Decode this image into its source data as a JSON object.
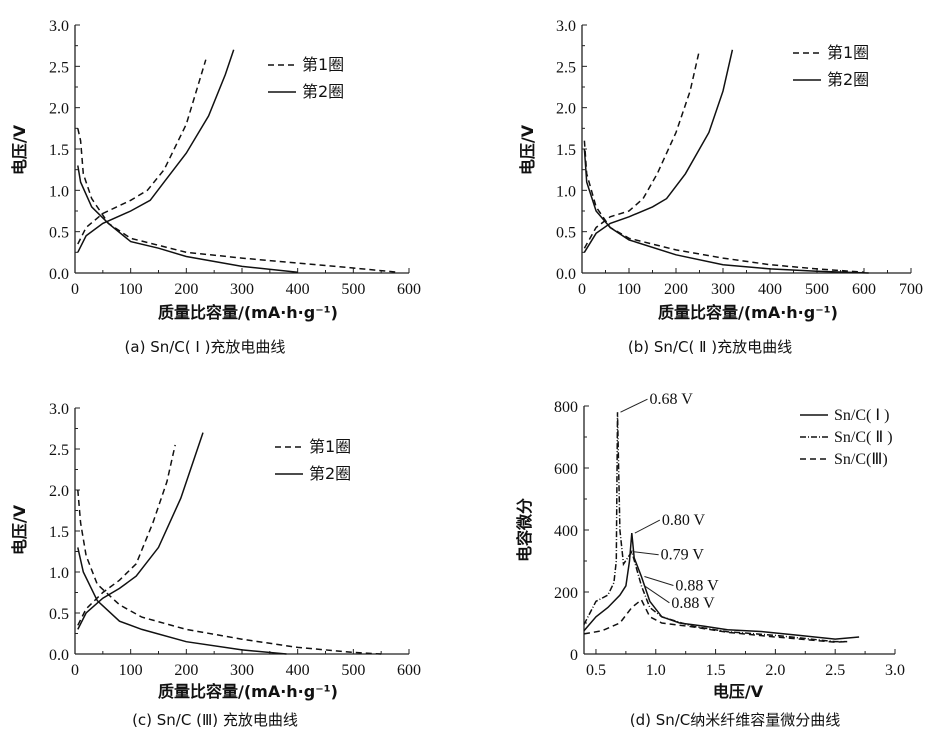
{
  "chart_data": [
    {
      "id": "a",
      "type": "line",
      "caption": "(a)  Sn/C( Ⅰ )充放电曲线",
      "xlabel": "质量比容量/(mA·h·g⁻¹)",
      "ylabel": "电压/V",
      "xlim": [
        0,
        600
      ],
      "ylim": [
        0,
        3.0
      ],
      "xticks": [
        0,
        100,
        200,
        300,
        400,
        500,
        600
      ],
      "yticks": [
        0.0,
        0.5,
        1.0,
        1.5,
        2.0,
        2.5,
        3.0
      ],
      "legend_position": "top-right",
      "series": [
        {
          "name": "第1圈",
          "style": "dashed",
          "segments": [
            [
              [
                5,
                0.35
              ],
              [
                20,
                0.55
              ],
              [
                50,
                0.72
              ],
              [
                100,
                0.88
              ],
              [
                130,
                1.0
              ],
              [
                160,
                1.25
              ],
              [
                200,
                1.8
              ],
              [
                235,
                2.58
              ]
            ],
            [
              [
                5,
                1.75
              ],
              [
                10,
                1.6
              ],
              [
                15,
                1.2
              ],
              [
                30,
                0.9
              ],
              [
                60,
                0.6
              ],
              [
                100,
                0.42
              ],
              [
                200,
                0.25
              ],
              [
                300,
                0.18
              ],
              [
                400,
                0.12
              ],
              [
                500,
                0.06
              ],
              [
                580,
                0.01
              ]
            ]
          ]
        },
        {
          "name": "第2圈",
          "style": "solid",
          "segments": [
            [
              [
                5,
                0.25
              ],
              [
                20,
                0.45
              ],
              [
                50,
                0.6
              ],
              [
                100,
                0.75
              ],
              [
                135,
                0.88
              ],
              [
                160,
                1.1
              ],
              [
                200,
                1.45
              ],
              [
                240,
                1.9
              ],
              [
                270,
                2.4
              ],
              [
                285,
                2.7
              ]
            ],
            [
              [
                5,
                1.3
              ],
              [
                10,
                1.1
              ],
              [
                30,
                0.8
              ],
              [
                60,
                0.6
              ],
              [
                100,
                0.38
              ],
              [
                150,
                0.3
              ],
              [
                200,
                0.2
              ],
              [
                300,
                0.08
              ],
              [
                400,
                0.01
              ]
            ]
          ]
        }
      ]
    },
    {
      "id": "b",
      "type": "line",
      "caption": "(b)  Sn/C( Ⅱ )充放电曲线",
      "xlabel": "质量比容量/(mA·h·g⁻¹)",
      "ylabel": "电压/V",
      "xlim": [
        0,
        700
      ],
      "ylim": [
        0,
        3.0
      ],
      "xticks": [
        0,
        100,
        200,
        300,
        400,
        500,
        600,
        700
      ],
      "yticks": [
        0.0,
        0.5,
        1.0,
        1.5,
        2.0,
        2.5,
        3.0
      ],
      "legend_position": "top-right",
      "series": [
        {
          "name": "第1圈",
          "style": "dashed",
          "segments": [
            [
              [
                5,
                0.3
              ],
              [
                30,
                0.55
              ],
              [
                60,
                0.68
              ],
              [
                100,
                0.75
              ],
              [
                130,
                0.9
              ],
              [
                160,
                1.2
              ],
              [
                200,
                1.7
              ],
              [
                230,
                2.2
              ],
              [
                250,
                2.7
              ]
            ],
            [
              [
                5,
                1.6
              ],
              [
                10,
                1.2
              ],
              [
                30,
                0.8
              ],
              [
                60,
                0.55
              ],
              [
                100,
                0.42
              ],
              [
                200,
                0.28
              ],
              [
                300,
                0.18
              ],
              [
                400,
                0.1
              ],
              [
                500,
                0.05
              ],
              [
                600,
                0.01
              ]
            ]
          ]
        },
        {
          "name": "第2圈",
          "style": "solid",
          "segments": [
            [
              [
                5,
                0.25
              ],
              [
                30,
                0.48
              ],
              [
                60,
                0.6
              ],
              [
                100,
                0.68
              ],
              [
                150,
                0.8
              ],
              [
                180,
                0.9
              ],
              [
                220,
                1.2
              ],
              [
                270,
                1.7
              ],
              [
                300,
                2.2
              ],
              [
                320,
                2.7
              ]
            ],
            [
              [
                5,
                1.5
              ],
              [
                10,
                1.1
              ],
              [
                30,
                0.75
              ],
              [
                60,
                0.55
              ],
              [
                100,
                0.4
              ],
              [
                200,
                0.22
              ],
              [
                300,
                0.1
              ],
              [
                400,
                0.05
              ],
              [
                500,
                0.02
              ],
              [
                610,
                0.0
              ]
            ]
          ]
        }
      ]
    },
    {
      "id": "c",
      "type": "line",
      "caption": "(c)  Sn/C (Ⅲ) 充放电曲线",
      "xlabel": "质量比容量/(mA·h·g⁻¹)",
      "ylabel": "电压/V",
      "xlim": [
        0,
        600
      ],
      "ylim": [
        0,
        3.0
      ],
      "xticks": [
        0,
        100,
        200,
        300,
        400,
        500,
        600
      ],
      "yticks": [
        0.0,
        0.5,
        1.0,
        1.5,
        2.0,
        2.5,
        3.0
      ],
      "legend_position": "top-right",
      "series": [
        {
          "name": "第1圈",
          "style": "dashed",
          "segments": [
            [
              [
                5,
                0.35
              ],
              [
                20,
                0.55
              ],
              [
                50,
                0.75
              ],
              [
                80,
                0.9
              ],
              [
                110,
                1.1
              ],
              [
                140,
                1.6
              ],
              [
                165,
                2.1
              ],
              [
                180,
                2.55
              ]
            ],
            [
              [
                5,
                2.0
              ],
              [
                10,
                1.6
              ],
              [
                20,
                1.2
              ],
              [
                40,
                0.85
              ],
              [
                80,
                0.6
              ],
              [
                120,
                0.45
              ],
              [
                200,
                0.3
              ],
              [
                300,
                0.18
              ],
              [
                400,
                0.08
              ],
              [
                500,
                0.02
              ],
              [
                550,
                0.0
              ]
            ]
          ]
        },
        {
          "name": "第2圈",
          "style": "solid",
          "segments": [
            [
              [
                5,
                0.3
              ],
              [
                20,
                0.5
              ],
              [
                50,
                0.68
              ],
              [
                80,
                0.8
              ],
              [
                110,
                0.95
              ],
              [
                150,
                1.3
              ],
              [
                190,
                1.9
              ],
              [
                230,
                2.7
              ]
            ],
            [
              [
                5,
                1.3
              ],
              [
                15,
                1.0
              ],
              [
                40,
                0.65
              ],
              [
                80,
                0.4
              ],
              [
                120,
                0.3
              ],
              [
                200,
                0.15
              ],
              [
                300,
                0.05
              ],
              [
                380,
                0.0
              ]
            ]
          ]
        }
      ]
    },
    {
      "id": "d",
      "type": "line",
      "caption": "(d) Sn/C纳米纤维容量微分曲线",
      "xlabel": "电压/V",
      "ylabel": "电容微分",
      "xlim": [
        0.4,
        3.0
      ],
      "ylim": [
        0,
        800
      ],
      "xticks": [
        0.5,
        1.0,
        1.5,
        2.0,
        2.5,
        3.0
      ],
      "yticks": [
        0,
        200,
        400,
        600,
        800
      ],
      "legend_position": "top-right",
      "series": [
        {
          "name": "Sn/C( Ⅰ )",
          "style": "solid",
          "segments": [
            [
              [
                0.4,
                75
              ],
              [
                0.5,
                120
              ],
              [
                0.6,
                150
              ],
              [
                0.7,
                190
              ],
              [
                0.75,
                220
              ],
              [
                0.78,
                300
              ],
              [
                0.8,
                390
              ],
              [
                0.82,
                310
              ],
              [
                0.88,
                250
              ],
              [
                0.95,
                170
              ],
              [
                1.05,
                120
              ],
              [
                1.2,
                100
              ],
              [
                1.4,
                90
              ],
              [
                1.6,
                78
              ],
              [
                1.9,
                72
              ],
              [
                2.2,
                60
              ],
              [
                2.5,
                48
              ],
              [
                2.7,
                55
              ]
            ]
          ]
        },
        {
          "name": "Sn/C( Ⅱ )",
          "style": "dashdot",
          "segments": [
            [
              [
                0.4,
                95
              ],
              [
                0.5,
                170
              ],
              [
                0.6,
                190
              ],
              [
                0.65,
                230
              ],
              [
                0.67,
                300
              ],
              [
                0.68,
                780
              ],
              [
                0.7,
                400
              ],
              [
                0.73,
                290
              ],
              [
                0.8,
                330
              ],
              [
                0.88,
                220
              ],
              [
                0.95,
                150
              ],
              [
                1.05,
                120
              ],
              [
                1.3,
                90
              ],
              [
                1.6,
                72
              ],
              [
                2.0,
                60
              ],
              [
                2.5,
                40
              ],
              [
                2.6,
                40
              ]
            ]
          ]
        },
        {
          "name": "Sn/C(Ⅲ)",
          "style": "dashed",
          "segments": [
            [
              [
                0.4,
                65
              ],
              [
                0.55,
                75
              ],
              [
                0.7,
                100
              ],
              [
                0.8,
                150
              ],
              [
                0.88,
                175
              ],
              [
                0.95,
                120
              ],
              [
                1.05,
                100
              ],
              [
                1.3,
                88
              ],
              [
                1.6,
                70
              ],
              [
                2.0,
                55
              ],
              [
                2.5,
                38
              ],
              [
                2.6,
                40
              ]
            ]
          ]
        }
      ],
      "annotations": [
        {
          "text": "0.68 V",
          "x": 0.68,
          "y": 780
        },
        {
          "text": "0.80 V",
          "x": 0.8,
          "y": 390
        },
        {
          "text": "0.79 V",
          "x": 0.79,
          "y": 330
        },
        {
          "text": "0.88 V",
          "x": 0.88,
          "y": 250
        },
        {
          "text": "0.88 V",
          "x": 0.88,
          "y": 220
        }
      ]
    }
  ]
}
